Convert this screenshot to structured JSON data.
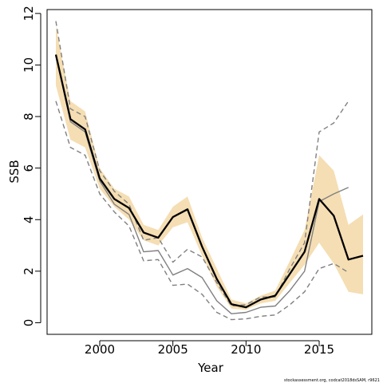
{
  "chart_data": {
    "type": "line",
    "title": "",
    "xlabel": "Year",
    "ylabel": "SSB",
    "xlim": [
      1996.4,
      2018.6
    ],
    "ylim": [
      -0.45,
      12.15
    ],
    "xticks": [
      2000,
      2005,
      2010,
      2015
    ],
    "yticks": [
      0,
      2,
      4,
      6,
      8,
      10,
      12
    ],
    "grid": false,
    "legend": "none",
    "footnote": "stockassessment.org, codcat2018dsSAM, r9621",
    "colors": {
      "band": "#f5deb3",
      "estimate": "#000000",
      "retro": "#808080"
    },
    "band": {
      "x": [
        1997,
        1998,
        1999,
        2000,
        2001,
        2002,
        2003,
        2004,
        2005,
        2006,
        2007,
        2008,
        2009,
        2010,
        2011,
        2012,
        2013,
        2014,
        2015,
        2016,
        2017,
        2018
      ],
      "lower": [
        9.2,
        7.1,
        6.8,
        5.2,
        4.5,
        4.0,
        3.2,
        3.0,
        3.7,
        3.9,
        2.6,
        1.4,
        0.55,
        0.5,
        0.75,
        0.85,
        1.55,
        2.25,
        3.1,
        2.3,
        1.2,
        1.1
      ],
      "upper": [
        11.5,
        8.6,
        8.2,
        6.0,
        5.2,
        4.9,
        3.8,
        3.6,
        4.5,
        4.9,
        3.3,
        2.1,
        0.9,
        0.75,
        1.05,
        1.25,
        2.4,
        3.6,
        6.5,
        5.9,
        3.8,
        4.2
      ]
    },
    "series": [
      {
        "x": [
          1997,
          1998,
          1999,
          2000,
          2001,
          2002,
          2003,
          2004,
          2005,
          2006,
          2007,
          2008,
          2009,
          2010,
          2011,
          2012,
          2013,
          2014,
          2015,
          2016,
          2017,
          2018
        ],
        "values": [
          10.4,
          7.9,
          7.5,
          5.6,
          4.8,
          4.45,
          3.5,
          3.3,
          4.1,
          4.4,
          2.95,
          1.7,
          0.72,
          0.6,
          0.9,
          1.05,
          1.9,
          2.75,
          4.8,
          4.15,
          2.45,
          2.6
        ],
        "style": "solid-bold"
      },
      {
        "x": [
          1997,
          1998,
          1999,
          2000,
          2001,
          2002,
          2003,
          2004,
          2005,
          2006,
          2007,
          2008,
          2009,
          2010,
          2011,
          2012,
          2013,
          2014,
          2015,
          2016,
          2017
        ],
        "values": [
          10.4,
          7.8,
          7.4,
          5.5,
          4.6,
          4.2,
          2.75,
          2.8,
          1.85,
          2.1,
          1.75,
          0.85,
          0.35,
          0.4,
          0.6,
          0.65,
          1.25,
          2.0,
          4.7,
          5.0,
          5.25
        ],
        "style": "solid-thin"
      },
      {
        "x": [
          1997,
          1998,
          1999,
          2000,
          2001,
          2002,
          2003,
          2004,
          2005,
          2006,
          2007,
          2008,
          2009,
          2010,
          2011,
          2012,
          2013,
          2014,
          2015,
          2016,
          2017
        ],
        "values": [
          11.7,
          8.3,
          8.0,
          5.9,
          5.1,
          4.6,
          3.2,
          3.3,
          2.35,
          2.85,
          2.55,
          1.55,
          0.65,
          0.7,
          1.0,
          1.0,
          2.1,
          3.1,
          7.4,
          7.75,
          8.6
        ],
        "style": "dashed"
      },
      {
        "x": [
          1997,
          1998,
          1999,
          2000,
          2001,
          2002,
          2003,
          2004,
          2005,
          2006,
          2007,
          2008,
          2009,
          2010,
          2011,
          2012,
          2013,
          2014,
          2015,
          2016,
          2017
        ],
        "values": [
          8.6,
          6.8,
          6.5,
          5.0,
          4.3,
          3.75,
          2.4,
          2.45,
          1.45,
          1.5,
          1.1,
          0.4,
          0.12,
          0.15,
          0.25,
          0.3,
          0.7,
          1.2,
          2.1,
          2.3,
          1.95
        ],
        "style": "dashed"
      }
    ]
  }
}
